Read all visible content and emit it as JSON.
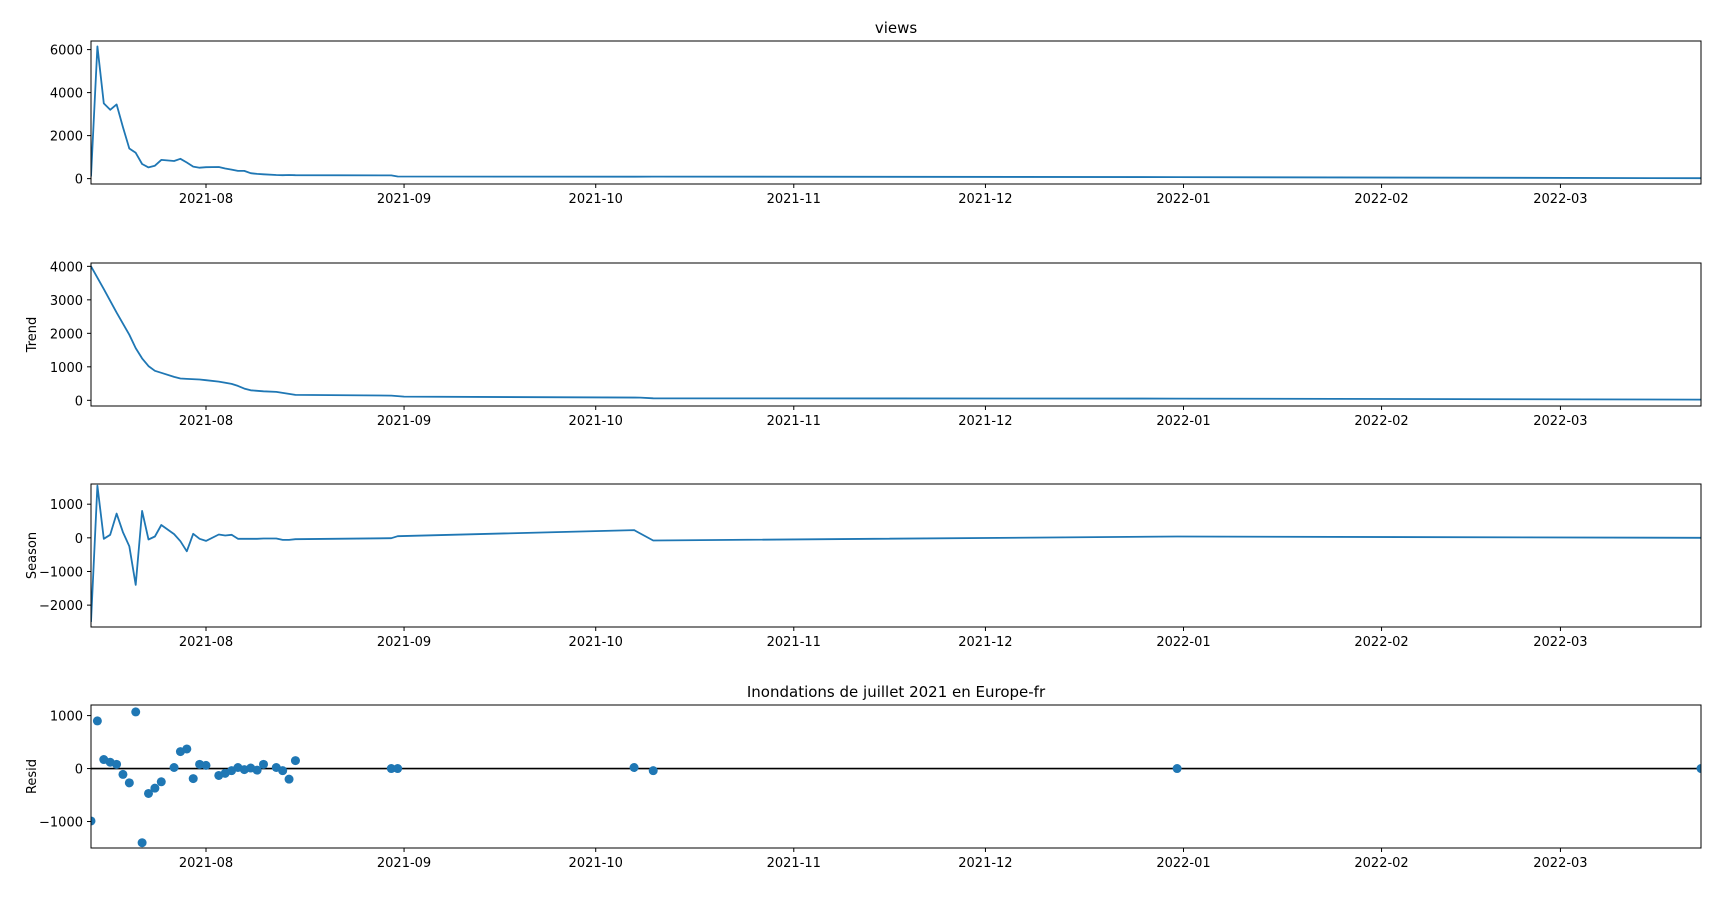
{
  "figure": {
    "colors": {
      "series": "#1f77b4",
      "axes": "#000000",
      "background": "#ffffff",
      "zero_line": "#000000"
    }
  },
  "chart_data": [
    {
      "type": "line",
      "title": "views",
      "xlabel": "",
      "ylabel": "",
      "xlim": [
        "2021-07-14",
        "2022-03-23"
      ],
      "ylim": [
        -250,
        6400
      ],
      "yticks": [
        0,
        2000,
        4000,
        6000
      ],
      "ytick_labels": [
        "0",
        "2000",
        "4000",
        "6000"
      ],
      "grid": false,
      "series": [
        {
          "x": [
            "2021-07-14",
            "2021-07-15",
            "2021-07-16",
            "2021-07-17",
            "2021-07-18",
            "2021-07-19",
            "2021-07-20",
            "2021-07-21",
            "2021-07-22",
            "2021-07-23",
            "2021-07-24",
            "2021-07-25",
            "2021-07-27",
            "2021-07-28",
            "2021-07-29",
            "2021-07-30",
            "2021-07-31",
            "2021-08-01",
            "2021-08-03",
            "2021-08-04",
            "2021-08-05",
            "2021-08-06",
            "2021-08-07",
            "2021-08-08",
            "2021-08-09",
            "2021-08-10",
            "2021-08-12",
            "2021-08-13",
            "2021-08-14",
            "2021-08-15",
            "2021-08-30",
            "2021-08-31",
            "2021-10-07",
            "2021-10-10",
            "2021-12-31",
            "2022-03-23"
          ],
          "y": [
            100,
            6150,
            3500,
            3200,
            3450,
            2400,
            1400,
            1200,
            680,
            520,
            600,
            870,
            820,
            920,
            750,
            560,
            510,
            530,
            540,
            470,
            420,
            360,
            360,
            250,
            220,
            200,
            170,
            160,
            170,
            160,
            150,
            100,
            90,
            95,
            70,
            20
          ]
        }
      ]
    },
    {
      "type": "line",
      "title": "",
      "xlabel": "",
      "ylabel": "Trend",
      "xlim": [
        "2021-07-14",
        "2022-03-23"
      ],
      "ylim": [
        -170,
        4100
      ],
      "yticks": [
        0,
        1000,
        2000,
        3000,
        4000
      ],
      "ytick_labels": [
        "0",
        "1000",
        "2000",
        "3000",
        "4000"
      ],
      "grid": false,
      "series": [
        {
          "x": [
            "2021-07-14",
            "2021-07-16",
            "2021-07-18",
            "2021-07-20",
            "2021-07-21",
            "2021-07-22",
            "2021-07-23",
            "2021-07-24",
            "2021-07-25",
            "2021-07-27",
            "2021-07-28",
            "2021-07-29",
            "2021-07-31",
            "2021-08-01",
            "2021-08-03",
            "2021-08-05",
            "2021-08-06",
            "2021-08-07",
            "2021-08-08",
            "2021-08-10",
            "2021-08-12",
            "2021-08-15",
            "2021-08-30",
            "2021-09-01",
            "2021-10-08",
            "2021-10-10",
            "2021-12-31",
            "2022-03-23"
          ],
          "y": [
            4000,
            3320,
            2620,
            1960,
            1560,
            1250,
            1020,
            880,
            820,
            700,
            650,
            640,
            620,
            600,
            560,
            490,
            430,
            350,
            300,
            270,
            250,
            160,
            140,
            110,
            80,
            60,
            50,
            20
          ]
        }
      ]
    },
    {
      "type": "line",
      "title": "",
      "xlabel": "",
      "ylabel": "Season",
      "xlim": [
        "2021-07-14",
        "2022-03-23"
      ],
      "ylim": [
        -2650,
        1600
      ],
      "yticks": [
        -2000,
        -1000,
        0,
        1000
      ],
      "ytick_labels": [
        "−2000",
        "−1000",
        "0",
        "1000"
      ],
      "grid": false,
      "series": [
        {
          "x": [
            "2021-07-14",
            "2021-07-15",
            "2021-07-16",
            "2021-07-17",
            "2021-07-18",
            "2021-07-19",
            "2021-07-20",
            "2021-07-21",
            "2021-07-22",
            "2021-07-23",
            "2021-07-24",
            "2021-07-25",
            "2021-07-27",
            "2021-07-28",
            "2021-07-29",
            "2021-07-30",
            "2021-07-31",
            "2021-08-01",
            "2021-08-03",
            "2021-08-04",
            "2021-08-05",
            "2021-08-06",
            "2021-08-07",
            "2021-08-08",
            "2021-08-09",
            "2021-08-10",
            "2021-08-12",
            "2021-08-13",
            "2021-08-14",
            "2021-08-15",
            "2021-08-30",
            "2021-08-31",
            "2021-10-07",
            "2021-10-10",
            "2021-12-31",
            "2022-03-23"
          ],
          "y": [
            -2500,
            1550,
            -30,
            90,
            720,
            170,
            -250,
            -1400,
            800,
            -50,
            40,
            380,
            110,
            -100,
            -400,
            120,
            -30,
            -90,
            100,
            70,
            90,
            -30,
            -30,
            -30,
            -30,
            -20,
            -20,
            -60,
            -60,
            -40,
            -10,
            50,
            230,
            -80,
            40,
            0
          ]
        }
      ]
    },
    {
      "type": "scatter",
      "title": "Inondations de juillet 2021 en Europe-fr",
      "xlabel": "",
      "ylabel": "Resid",
      "xlim": [
        "2021-07-14",
        "2022-03-23"
      ],
      "ylim": [
        -1500,
        1200
      ],
      "yticks": [
        -1000,
        0,
        1000
      ],
      "ytick_labels": [
        "−1000",
        "0",
        "1000"
      ],
      "zero_line": true,
      "grid": false,
      "series": [
        {
          "x": [
            "2021-07-14",
            "2021-07-15",
            "2021-07-16",
            "2021-07-17",
            "2021-07-18",
            "2021-07-19",
            "2021-07-20",
            "2021-07-21",
            "2021-07-22",
            "2021-07-23",
            "2021-07-24",
            "2021-07-25",
            "2021-07-27",
            "2021-07-28",
            "2021-07-29",
            "2021-07-30",
            "2021-07-31",
            "2021-08-01",
            "2021-08-03",
            "2021-08-04",
            "2021-08-05",
            "2021-08-06",
            "2021-08-07",
            "2021-08-08",
            "2021-08-09",
            "2021-08-10",
            "2021-08-12",
            "2021-08-13",
            "2021-08-14",
            "2021-08-15",
            "2021-08-30",
            "2021-08-31",
            "2021-10-07",
            "2021-10-10",
            "2021-12-31",
            "2022-03-23"
          ],
          "y": [
            -990,
            900,
            170,
            120,
            80,
            -110,
            -270,
            1070,
            -1400,
            -470,
            -370,
            -250,
            20,
            320,
            370,
            -190,
            80,
            60,
            -130,
            -90,
            -40,
            20,
            -20,
            10,
            -30,
            80,
            20,
            -40,
            -200,
            150,
            0,
            0,
            20,
            -40,
            0,
            0
          ]
        }
      ]
    }
  ],
  "x_axis": {
    "ticks": [
      "2021-08-01",
      "2021-09-01",
      "2021-10-01",
      "2021-11-01",
      "2021-12-01",
      "2022-01-01",
      "2022-02-01",
      "2022-03-01"
    ],
    "tick_labels": [
      "2021-08",
      "2021-09",
      "2021-10",
      "2021-11",
      "2021-12",
      "2022-01",
      "2022-02",
      "2022-03"
    ]
  }
}
